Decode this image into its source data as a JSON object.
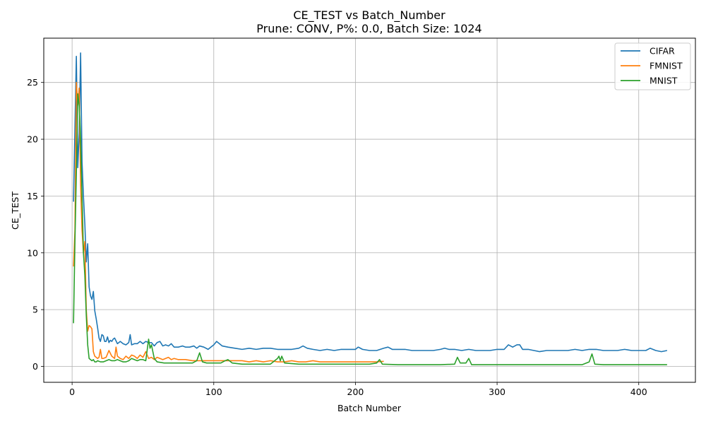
{
  "chart_data": {
    "type": "line",
    "title": "CE_TEST vs Batch_Number",
    "subtitle": "Prune: CONV, P%: 0.0, Batch Size: 1024",
    "xlabel": "Batch Number",
    "ylabel": "CE_TEST",
    "xlim": [
      -20,
      440
    ],
    "ylim": [
      -1.4,
      28.9
    ],
    "xticks": [
      0,
      100,
      200,
      300,
      400
    ],
    "yticks": [
      0,
      5,
      10,
      15,
      20,
      25
    ],
    "grid": true,
    "legend_position": "top-right",
    "series": [
      {
        "name": "CIFAR",
        "color": "#1f77b4",
        "points": [
          [
            1,
            14.5
          ],
          [
            2,
            21
          ],
          [
            3,
            27.3
          ],
          [
            4,
            17.5
          ],
          [
            5,
            20.5
          ],
          [
            6,
            27.6
          ],
          [
            7,
            18
          ],
          [
            8,
            15
          ],
          [
            9,
            12.5
          ],
          [
            10,
            9.2
          ],
          [
            11,
            10.8
          ],
          [
            12,
            7
          ],
          [
            13,
            6.2
          ],
          [
            14,
            5.9
          ],
          [
            15,
            6.6
          ],
          [
            16,
            4.9
          ],
          [
            17,
            4.2
          ],
          [
            18,
            3.4
          ],
          [
            19,
            2.5
          ],
          [
            20,
            2.2
          ],
          [
            21,
            2.8
          ],
          [
            22,
            2.7
          ],
          [
            23,
            2.2
          ],
          [
            24,
            2.2
          ],
          [
            25,
            2.6
          ],
          [
            26,
            2.1
          ],
          [
            27,
            2.3
          ],
          [
            28,
            2.2
          ],
          [
            29,
            2.4
          ],
          [
            30,
            2.5
          ],
          [
            32,
            2.0
          ],
          [
            34,
            2.2
          ],
          [
            36,
            2.0
          ],
          [
            38,
            1.9
          ],
          [
            40,
            2.1
          ],
          [
            41,
            2.8
          ],
          [
            42,
            1.9
          ],
          [
            44,
            2.0
          ],
          [
            46,
            2.0
          ],
          [
            48,
            2.2
          ],
          [
            50,
            2.0
          ],
          [
            52,
            2.2
          ],
          [
            54,
            2.1
          ],
          [
            56,
            2.1
          ],
          [
            58,
            1.8
          ],
          [
            60,
            2.1
          ],
          [
            62,
            2.2
          ],
          [
            64,
            1.8
          ],
          [
            66,
            1.9
          ],
          [
            68,
            1.8
          ],
          [
            70,
            2.0
          ],
          [
            72,
            1.7
          ],
          [
            75,
            1.7
          ],
          [
            78,
            1.8
          ],
          [
            80,
            1.7
          ],
          [
            83,
            1.7
          ],
          [
            86,
            1.8
          ],
          [
            88,
            1.6
          ],
          [
            90,
            1.8
          ],
          [
            93,
            1.7
          ],
          [
            96,
            1.5
          ],
          [
            98,
            1.7
          ],
          [
            100,
            1.9
          ],
          [
            102,
            2.2
          ],
          [
            104,
            2.0
          ],
          [
            106,
            1.8
          ],
          [
            110,
            1.7
          ],
          [
            115,
            1.6
          ],
          [
            120,
            1.5
          ],
          [
            125,
            1.6
          ],
          [
            130,
            1.5
          ],
          [
            135,
            1.6
          ],
          [
            140,
            1.6
          ],
          [
            145,
            1.5
          ],
          [
            150,
            1.5
          ],
          [
            155,
            1.5
          ],
          [
            160,
            1.6
          ],
          [
            163,
            1.8
          ],
          [
            166,
            1.6
          ],
          [
            170,
            1.5
          ],
          [
            175,
            1.4
          ],
          [
            180,
            1.5
          ],
          [
            185,
            1.4
          ],
          [
            190,
            1.5
          ],
          [
            195,
            1.5
          ],
          [
            200,
            1.5
          ],
          [
            202,
            1.7
          ],
          [
            205,
            1.5
          ],
          [
            210,
            1.4
          ],
          [
            215,
            1.4
          ],
          [
            220,
            1.6
          ],
          [
            223,
            1.7
          ],
          [
            226,
            1.5
          ],
          [
            230,
            1.5
          ],
          [
            235,
            1.5
          ],
          [
            240,
            1.4
          ],
          [
            245,
            1.4
          ],
          [
            250,
            1.4
          ],
          [
            255,
            1.4
          ],
          [
            260,
            1.5
          ],
          [
            263,
            1.6
          ],
          [
            266,
            1.5
          ],
          [
            270,
            1.5
          ],
          [
            275,
            1.4
          ],
          [
            280,
            1.5
          ],
          [
            285,
            1.4
          ],
          [
            290,
            1.4
          ],
          [
            295,
            1.4
          ],
          [
            300,
            1.5
          ],
          [
            305,
            1.5
          ],
          [
            308,
            1.9
          ],
          [
            311,
            1.7
          ],
          [
            314,
            1.9
          ],
          [
            316,
            1.9
          ],
          [
            318,
            1.5
          ],
          [
            322,
            1.5
          ],
          [
            326,
            1.4
          ],
          [
            330,
            1.3
          ],
          [
            335,
            1.4
          ],
          [
            340,
            1.4
          ],
          [
            345,
            1.4
          ],
          [
            350,
            1.4
          ],
          [
            355,
            1.5
          ],
          [
            360,
            1.4
          ],
          [
            365,
            1.5
          ],
          [
            370,
            1.5
          ],
          [
            375,
            1.4
          ],
          [
            380,
            1.4
          ],
          [
            385,
            1.4
          ],
          [
            390,
            1.5
          ],
          [
            395,
            1.4
          ],
          [
            400,
            1.4
          ],
          [
            405,
            1.4
          ],
          [
            408,
            1.6
          ],
          [
            412,
            1.4
          ],
          [
            416,
            1.3
          ],
          [
            420,
            1.4
          ]
        ]
      },
      {
        "name": "FMNIST",
        "color": "#ff7f0e",
        "points": [
          [
            1,
            8.8
          ],
          [
            2,
            12
          ],
          [
            3,
            25
          ],
          [
            4,
            23
          ],
          [
            5,
            24.5
          ],
          [
            6,
            16
          ],
          [
            7,
            12
          ],
          [
            8,
            10
          ],
          [
            9,
            11
          ],
          [
            10,
            5
          ],
          [
            11,
            3.1
          ],
          [
            12,
            3.6
          ],
          [
            13,
            3.5
          ],
          [
            14,
            3.3
          ],
          [
            15,
            1.3
          ],
          [
            16,
            0.9
          ],
          [
            17,
            0.8
          ],
          [
            18,
            0.7
          ],
          [
            19,
            0.8
          ],
          [
            20,
            1.5
          ],
          [
            21,
            0.7
          ],
          [
            22,
            0.7
          ],
          [
            24,
            0.8
          ],
          [
            26,
            1.4
          ],
          [
            28,
            0.9
          ],
          [
            30,
            0.7
          ],
          [
            31,
            1.7
          ],
          [
            32,
            0.9
          ],
          [
            34,
            0.7
          ],
          [
            36,
            0.6
          ],
          [
            38,
            0.9
          ],
          [
            40,
            0.7
          ],
          [
            42,
            1.0
          ],
          [
            44,
            0.9
          ],
          [
            46,
            0.7
          ],
          [
            48,
            1.0
          ],
          [
            50,
            0.8
          ],
          [
            52,
            1.3
          ],
          [
            54,
            0.7
          ],
          [
            56,
            0.8
          ],
          [
            58,
            0.6
          ],
          [
            60,
            0.8
          ],
          [
            62,
            0.7
          ],
          [
            64,
            0.6
          ],
          [
            66,
            0.7
          ],
          [
            68,
            0.8
          ],
          [
            70,
            0.6
          ],
          [
            72,
            0.7
          ],
          [
            75,
            0.6
          ],
          [
            78,
            0.6
          ],
          [
            80,
            0.6
          ],
          [
            85,
            0.5
          ],
          [
            90,
            0.5
          ],
          [
            95,
            0.5
          ],
          [
            100,
            0.5
          ],
          [
            105,
            0.5
          ],
          [
            110,
            0.5
          ],
          [
            115,
            0.5
          ],
          [
            120,
            0.5
          ],
          [
            125,
            0.4
          ],
          [
            130,
            0.5
          ],
          [
            135,
            0.4
          ],
          [
            140,
            0.5
          ],
          [
            145,
            0.4
          ],
          [
            150,
            0.4
          ],
          [
            155,
            0.5
          ],
          [
            160,
            0.4
          ],
          [
            165,
            0.4
          ],
          [
            170,
            0.5
          ],
          [
            175,
            0.4
          ],
          [
            180,
            0.4
          ],
          [
            185,
            0.4
          ],
          [
            190,
            0.4
          ],
          [
            195,
            0.4
          ],
          [
            200,
            0.4
          ],
          [
            205,
            0.4
          ],
          [
            210,
            0.4
          ],
          [
            215,
            0.4
          ],
          [
            220,
            0.45
          ]
        ]
      },
      {
        "name": "MNIST",
        "color": "#2ca02c",
        "points": [
          [
            1,
            3.8
          ],
          [
            2,
            11
          ],
          [
            3,
            17
          ],
          [
            4,
            24
          ],
          [
            5,
            23
          ],
          [
            6,
            20
          ],
          [
            7,
            15
          ],
          [
            8,
            10
          ],
          [
            9,
            8
          ],
          [
            10,
            4.5
          ],
          [
            11,
            1.9
          ],
          [
            12,
            0.7
          ],
          [
            13,
            0.6
          ],
          [
            14,
            0.5
          ],
          [
            15,
            0.6
          ],
          [
            16,
            0.4
          ],
          [
            17,
            0.4
          ],
          [
            18,
            0.5
          ],
          [
            20,
            0.4
          ],
          [
            22,
            0.4
          ],
          [
            24,
            0.5
          ],
          [
            26,
            0.6
          ],
          [
            28,
            0.5
          ],
          [
            30,
            0.5
          ],
          [
            32,
            0.6
          ],
          [
            34,
            0.5
          ],
          [
            36,
            0.4
          ],
          [
            38,
            0.4
          ],
          [
            40,
            0.5
          ],
          [
            42,
            0.7
          ],
          [
            44,
            0.6
          ],
          [
            46,
            0.5
          ],
          [
            48,
            0.6
          ],
          [
            50,
            0.6
          ],
          [
            52,
            0.5
          ],
          [
            54,
            2.4
          ],
          [
            55,
            1.6
          ],
          [
            56,
            1.9
          ],
          [
            58,
            0.7
          ],
          [
            60,
            0.4
          ],
          [
            65,
            0.3
          ],
          [
            70,
            0.3
          ],
          [
            75,
            0.3
          ],
          [
            80,
            0.3
          ],
          [
            85,
            0.3
          ],
          [
            88,
            0.5
          ],
          [
            90,
            1.2
          ],
          [
            92,
            0.4
          ],
          [
            95,
            0.3
          ],
          [
            100,
            0.3
          ],
          [
            105,
            0.3
          ],
          [
            108,
            0.5
          ],
          [
            110,
            0.6
          ],
          [
            113,
            0.3
          ],
          [
            120,
            0.2
          ],
          [
            130,
            0.2
          ],
          [
            140,
            0.2
          ],
          [
            145,
            0.7
          ],
          [
            146,
            0.9
          ],
          [
            147,
            0.5
          ],
          [
            148,
            0.9
          ],
          [
            150,
            0.3
          ],
          [
            160,
            0.2
          ],
          [
            170,
            0.2
          ],
          [
            180,
            0.2
          ],
          [
            190,
            0.2
          ],
          [
            200,
            0.2
          ],
          [
            210,
            0.2
          ],
          [
            215,
            0.3
          ],
          [
            217,
            0.6
          ],
          [
            219,
            0.2
          ],
          [
            230,
            0.15
          ],
          [
            240,
            0.15
          ],
          [
            250,
            0.15
          ],
          [
            260,
            0.15
          ],
          [
            270,
            0.2
          ],
          [
            272,
            0.8
          ],
          [
            274,
            0.3
          ],
          [
            278,
            0.3
          ],
          [
            280,
            0.7
          ],
          [
            282,
            0.15
          ],
          [
            290,
            0.15
          ],
          [
            300,
            0.15
          ],
          [
            310,
            0.15
          ],
          [
            320,
            0.15
          ],
          [
            330,
            0.15
          ],
          [
            340,
            0.15
          ],
          [
            350,
            0.15
          ],
          [
            360,
            0.15
          ],
          [
            365,
            0.4
          ],
          [
            367,
            1.1
          ],
          [
            369,
            0.2
          ],
          [
            375,
            0.15
          ],
          [
            380,
            0.15
          ],
          [
            390,
            0.15
          ],
          [
            400,
            0.15
          ],
          [
            410,
            0.15
          ],
          [
            420,
            0.15
          ]
        ]
      }
    ]
  }
}
